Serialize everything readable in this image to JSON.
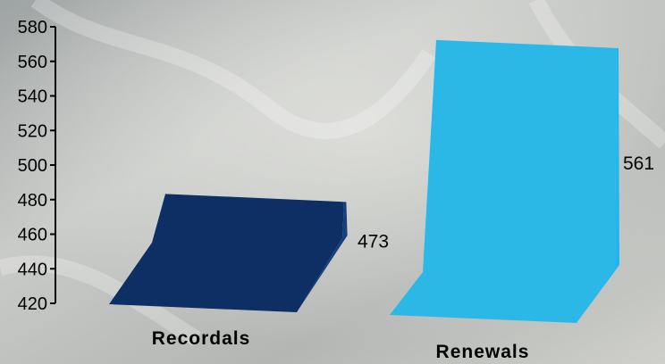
{
  "chart_data": {
    "type": "bar",
    "style": "3d-wedge",
    "categories": [
      "Recordals",
      "Renewals"
    ],
    "values": [
      473,
      561
    ],
    "data_labels": [
      "473",
      "561"
    ],
    "ylim": [
      420,
      580
    ],
    "yticks": [
      420,
      440,
      460,
      480,
      500,
      520,
      540,
      560,
      580
    ],
    "grid": false,
    "legend": "none",
    "colors": {
      "Recordals": {
        "front": "#0d2f63",
        "side": "#163f7d",
        "floor": "#0b2a58"
      },
      "Renewals": {
        "front": "#2bb8e6",
        "side": "#1fb6f2",
        "floor": "#35b5e0"
      }
    }
  }
}
